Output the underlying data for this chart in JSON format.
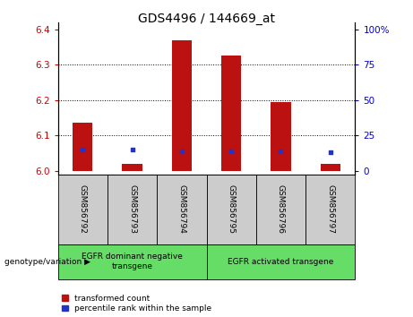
{
  "title": "GDS4496 / 144669_at",
  "samples": [
    "GSM856792",
    "GSM856793",
    "GSM856794",
    "GSM856795",
    "GSM856796",
    "GSM856797"
  ],
  "transformed_count": [
    6.135,
    6.02,
    6.37,
    6.325,
    6.195,
    6.02
  ],
  "percentile_rank": [
    15,
    15,
    14,
    14,
    14,
    13
  ],
  "ylim_left": [
    5.99,
    6.42
  ],
  "ylim_right": [
    -2.5,
    105
  ],
  "yticks_left": [
    6.0,
    6.1,
    6.2,
    6.3,
    6.4
  ],
  "yticks_right": [
    0,
    25,
    50,
    75,
    100
  ],
  "ytick_labels_right": [
    "0",
    "25",
    "50",
    "75",
    "100%"
  ],
  "bar_color": "#bb1111",
  "blue_color": "#2233cc",
  "group1_label": "EGFR dominant negative\ntransgene",
  "group2_label": "EGFR activated transgene",
  "group_bg_color": "#66dd66",
  "sample_bg_color": "#cccccc",
  "legend_red_label": "transformed count",
  "legend_blue_label": "percentile rank within the sample",
  "genotype_label": "genotype/variation",
  "left_ytick_color": "#cc0000",
  "right_ytick_color": "#0000cc",
  "title_fontsize": 10,
  "tick_fontsize": 7.5,
  "base_value": 6.0,
  "bar_width": 0.4
}
